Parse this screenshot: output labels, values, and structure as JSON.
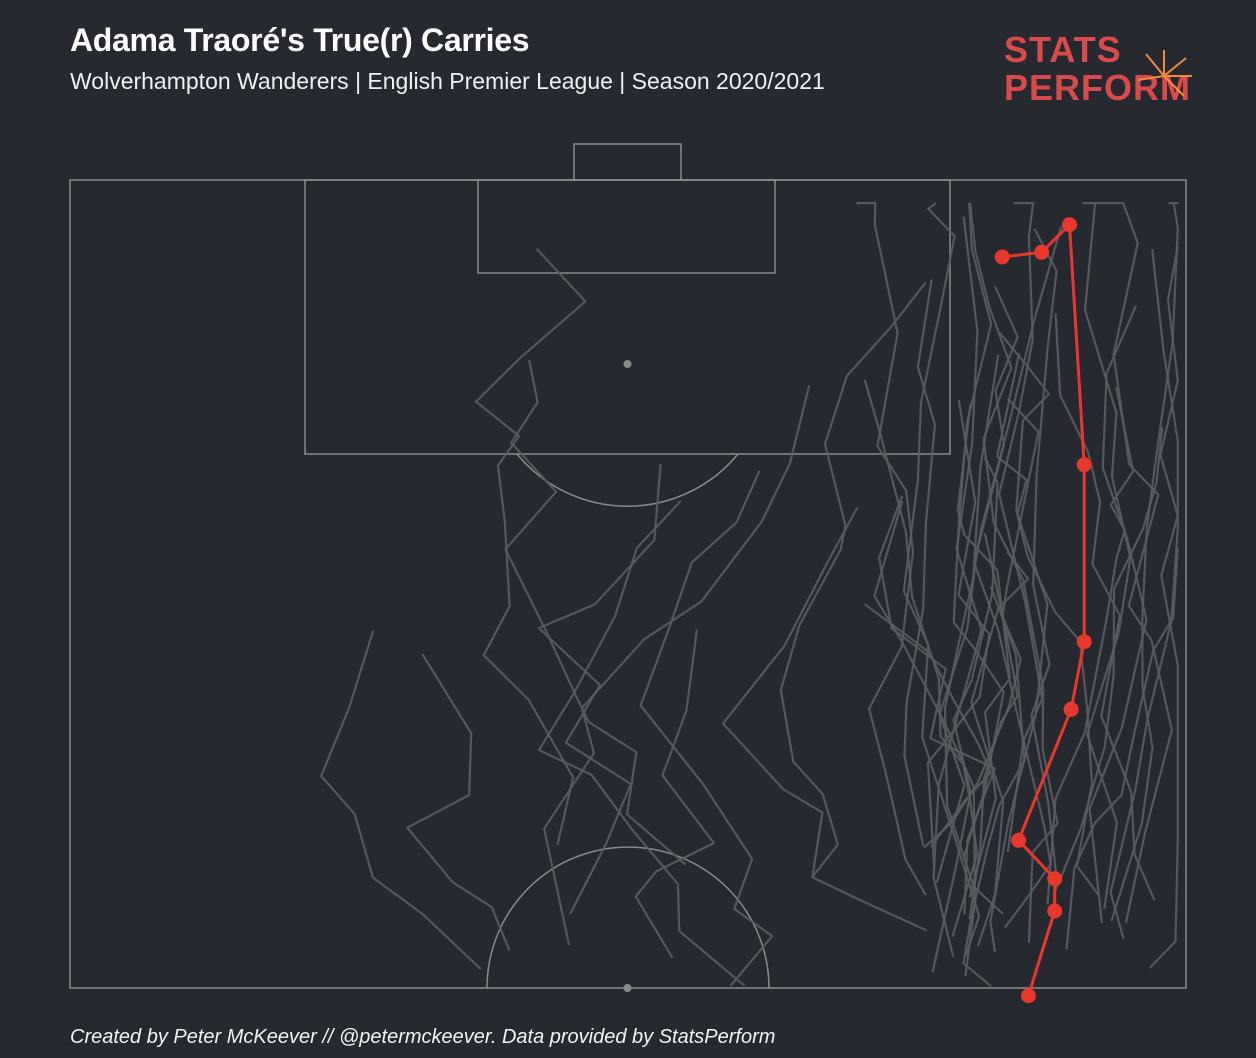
{
  "title": "Adama Traoré's True(r) Carries",
  "subtitle": "Wolverhampton Wanderers | English Premier League | Season 2020/2021",
  "footer": "Created by Peter McKeever // @petermckeever. Data provided by StatsPerform",
  "logo": {
    "line1": "STATS",
    "line2": "PERFORM",
    "brand_color": "#d94a4a",
    "accent_color": "#f08a3c"
  },
  "colors": {
    "background": "#262930",
    "pitch_lines": "#8a8a8a",
    "carry_paths": "#5a5c61",
    "highlight": "#e8382e"
  },
  "chart_data": {
    "type": "scatter",
    "description_of_axes": "pitch coordinates, x = across pitch 0-68, y = up pitch toward goal 52.5-105",
    "xlim": [
      0,
      68
    ],
    "ylim": [
      52.5,
      105
    ],
    "highlighted_carry": [
      [
        58.4,
        52.0
      ],
      [
        60.0,
        57.5
      ],
      [
        60.0,
        59.6
      ],
      [
        57.8,
        62.1
      ],
      [
        61.0,
        70.6
      ],
      [
        61.8,
        75.0
      ],
      [
        61.8,
        86.5
      ],
      [
        60.9,
        102.1
      ],
      [
        59.2,
        100.3
      ],
      [
        56.8,
        100.0
      ]
    ],
    "other_carries_count": 45
  }
}
